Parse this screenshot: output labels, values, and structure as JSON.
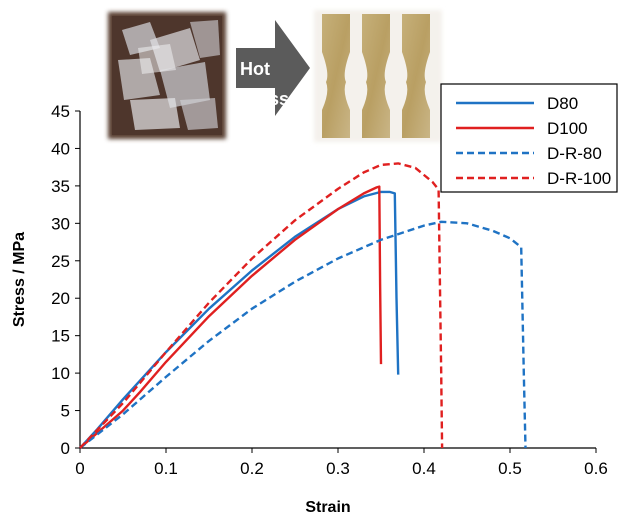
{
  "chart_data": {
    "type": "line",
    "xlabel": "Strain",
    "ylabel": "Stress / MPa",
    "xlim": [
      0,
      0.6
    ],
    "ylim": [
      0,
      45
    ],
    "x_ticks": [
      "0",
      "0.1",
      "0.2",
      "0.3",
      "0.4",
      "0.5",
      "0.6"
    ],
    "y_ticks": [
      "0",
      "5",
      "10",
      "15",
      "20",
      "25",
      "30",
      "35",
      "40",
      "45"
    ],
    "grid": false,
    "legend_position": "top-right",
    "series": [
      {
        "name": "D80",
        "color": "#1f73c4",
        "dash": "solid",
        "x": [
          0,
          0.02,
          0.05,
          0.1,
          0.15,
          0.2,
          0.25,
          0.3,
          0.33,
          0.35,
          0.36,
          0.366,
          0.368,
          0.37
        ],
        "y": [
          0,
          2.5,
          6.5,
          12.8,
          18.6,
          23.7,
          28.2,
          31.9,
          33.6,
          34.2,
          34.2,
          34.0,
          20.0,
          9.8
        ]
      },
      {
        "name": "D100",
        "color": "#e02020",
        "dash": "solid",
        "x": [
          0,
          0.02,
          0.05,
          0.07,
          0.1,
          0.15,
          0.2,
          0.25,
          0.3,
          0.33,
          0.345,
          0.348,
          0.349,
          0.35
        ],
        "y": [
          0,
          2.0,
          5.0,
          7.5,
          11.5,
          17.6,
          23.0,
          27.8,
          31.9,
          34.0,
          34.8,
          34.9,
          22.0,
          11.2
        ]
      },
      {
        "name": "D-R-80",
        "color": "#1f73c4",
        "dash": "dashed",
        "x": [
          0,
          0.05,
          0.1,
          0.15,
          0.2,
          0.25,
          0.3,
          0.35,
          0.4,
          0.42,
          0.45,
          0.48,
          0.5,
          0.513,
          0.516,
          0.518
        ],
        "y": [
          0,
          4.5,
          9.5,
          14.3,
          18.6,
          22.2,
          25.3,
          27.8,
          29.7,
          30.2,
          30.0,
          29.0,
          28.0,
          26.8,
          10.0,
          0
        ]
      },
      {
        "name": "D-R-100",
        "color": "#e02020",
        "dash": "dashed",
        "x": [
          0,
          0.05,
          0.1,
          0.15,
          0.2,
          0.25,
          0.3,
          0.33,
          0.35,
          0.37,
          0.39,
          0.41,
          0.417,
          0.42,
          0.421
        ],
        "y": [
          0,
          6.0,
          12.8,
          19.4,
          25.3,
          30.4,
          34.6,
          36.8,
          37.8,
          38.0,
          37.4,
          35.5,
          34.5,
          10.0,
          0
        ]
      }
    ]
  },
  "images": {
    "arrow_text": "Hot Press"
  }
}
